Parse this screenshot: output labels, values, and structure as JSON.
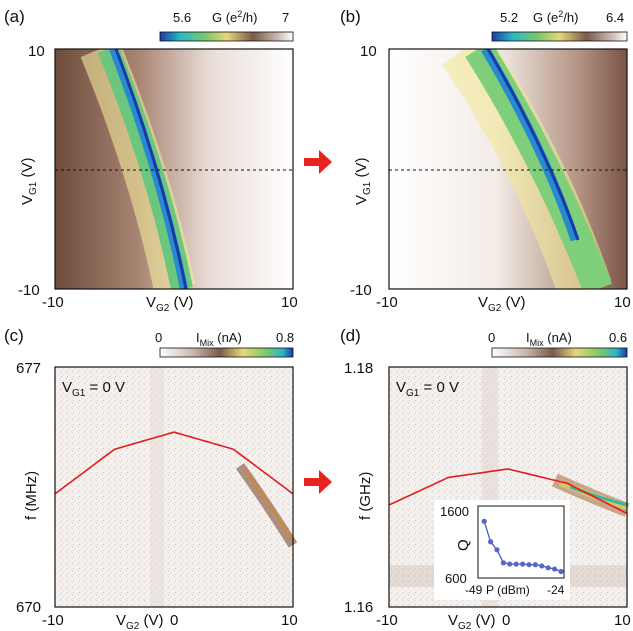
{
  "arrow_color": "#e8231f",
  "fit_color": "#e01e1e",
  "chart_data": [
    {
      "panel": "(a)",
      "type": "heatmap",
      "xlabel_main": "V",
      "xlabel_sub": "G2",
      "xlabel_unit": " (V)",
      "ylabel_main": "V",
      "ylabel_sub": "G1",
      "ylabel_unit": " (V)",
      "x_ticks": [
        "-10",
        "10"
      ],
      "y_ticks": [
        "10",
        "-10"
      ],
      "xlim": [
        -10,
        10
      ],
      "ylim": [
        -10,
        10
      ],
      "colorbar": {
        "min": "5.6",
        "max": "7",
        "label_main": "G (e",
        "label_sup": "2",
        "label_tail": "/h)",
        "colormap": "blue-green-yellow-brown-white"
      },
      "ridge": {
        "v_g1": [
          10,
          0,
          -10
        ],
        "v_g2": [
          -3,
          0,
          1.6
        ]
      },
      "dashed_line_v_g1": 0
    },
    {
      "panel": "(b)",
      "type": "heatmap",
      "xlabel_main": "V",
      "xlabel_sub": "G2",
      "xlabel_unit": " (V)",
      "ylabel_main": "V",
      "ylabel_sub": "G1",
      "ylabel_unit": " (V)",
      "x_ticks": [
        "-10",
        "10"
      ],
      "y_ticks": [
        "10",
        "-10"
      ],
      "xlim": [
        -10,
        10
      ],
      "ylim": [
        -10,
        10
      ],
      "colorbar": {
        "min": "5.2",
        "max": "6.4",
        "label_main": "G (e",
        "label_sup": "2",
        "label_tail": "/h)",
        "colormap": "blue-green-yellow-brown-white"
      },
      "ridge": {
        "v_g1": [
          10,
          0,
          -10
        ],
        "v_g2": [
          -2.5,
          2,
          6
        ]
      },
      "dashed_line_v_g1": 0
    },
    {
      "panel": "(c)",
      "type": "heatmap",
      "annotation": "V",
      "annotation_sub": "G1",
      "annotation_tail": " = 0 V",
      "xlabel_main": "V",
      "xlabel_sub": "G2",
      "xlabel_unit": " (V)",
      "ylabel": "f (MHz)",
      "x_ticks": [
        "-10",
        "0",
        "10"
      ],
      "y_ticks": [
        "677",
        "670"
      ],
      "xlim": [
        -10,
        10
      ],
      "ylim": [
        670,
        677
      ],
      "colorbar": {
        "min": "0",
        "max": "0.8",
        "label_main": "I",
        "label_sub": "Mix",
        "label_tail": " (nA)",
        "colormap": "white-brown-yellow-green-blue"
      },
      "fit_curve": {
        "x": [
          -10,
          -5,
          0,
          5,
          10
        ],
        "y": [
          673.3,
          674.6,
          675.1,
          674.6,
          673.3
        ]
      },
      "signal_band": {
        "x": [
          5,
          10
        ],
        "y": [
          674.2,
          672.8
        ]
      }
    },
    {
      "panel": "(d)",
      "type": "heatmap",
      "annotation": "V",
      "annotation_sub": "G1",
      "annotation_tail": " = 0 V",
      "xlabel_main": "V",
      "xlabel_sub": "G2",
      "xlabel_unit": " (V)",
      "ylabel": "f (GHz)",
      "x_ticks": [
        "-10",
        "0",
        "10"
      ],
      "y_ticks": [
        "1.18",
        "1.16"
      ],
      "xlim": [
        -10,
        10
      ],
      "ylim": [
        1.16,
        1.18
      ],
      "colorbar": {
        "min": "0",
        "max": "0.6",
        "label_main": "I",
        "label_sub": "Mix",
        "label_tail": " (nA)",
        "colormap": "white-brown-yellow-green-blue"
      },
      "fit_curve": {
        "x": [
          -10,
          -5,
          0,
          5,
          10
        ],
        "y": [
          1.1685,
          1.1708,
          1.1715,
          1.1703,
          1.1678
        ]
      },
      "signal_band": {
        "x": [
          4,
          10
        ],
        "y": [
          1.1702,
          1.1676
        ]
      },
      "inset": {
        "type": "scatter",
        "ylabel": "Q",
        "xlabel": "P (dBm)",
        "x_ticks": [
          "-49",
          "-24"
        ],
        "y_ticks": [
          "1600",
          "600"
        ],
        "xlim": [
          -49,
          -24
        ],
        "ylim": [
          600,
          1600
        ],
        "x": [
          -48,
          -46,
          -44,
          -42,
          -40,
          -38,
          -36,
          -34,
          -32,
          -30,
          -28,
          -26,
          -24
        ],
        "y": [
          1450,
          1120,
          990,
          780,
          760,
          760,
          760,
          750,
          750,
          730,
          700,
          680,
          640
        ]
      }
    }
  ]
}
